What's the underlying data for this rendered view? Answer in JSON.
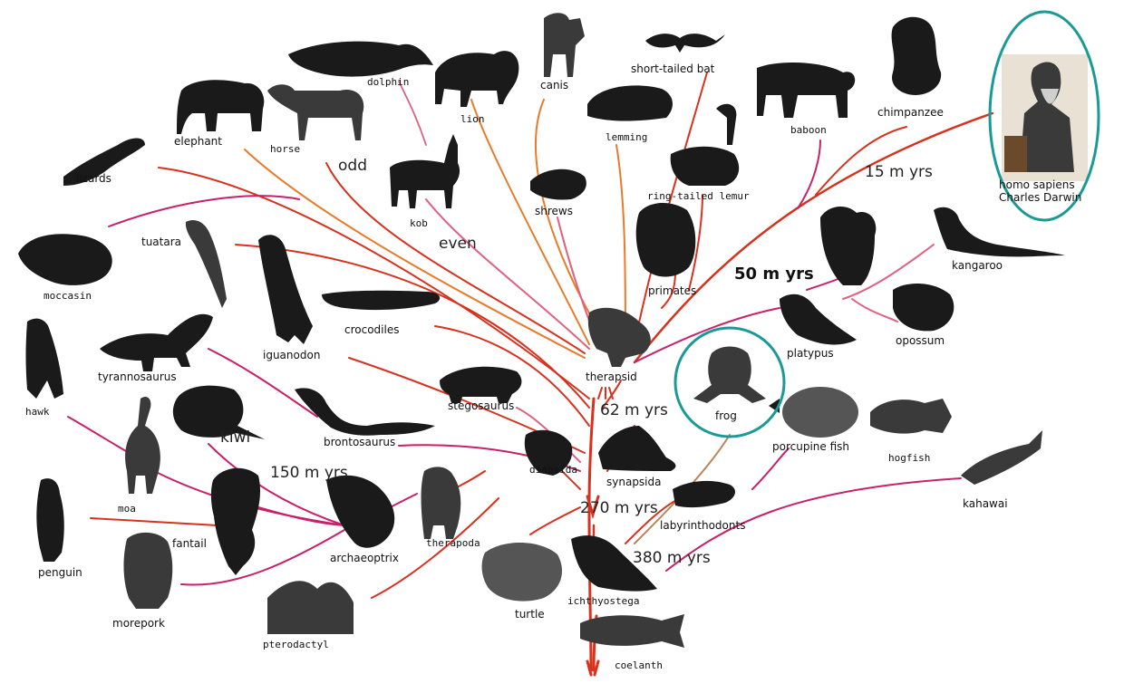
{
  "labels": {
    "dolphin": "dolphin",
    "lion": "lion",
    "canis": "canis",
    "short_tailed_bat": "short-tailed bat",
    "lemming": "lemming",
    "baboon": "baboon",
    "chimpanzee": "chimpanzee",
    "homo_sapiens": "homo sapiens",
    "charles_darwin": "Charles Darwin",
    "elephant": "elephant",
    "horse": "horse",
    "lizards": "lizards",
    "kob": "kob",
    "shrews": "shrews",
    "ring_tailed_lemur": "ring-tailed lemur",
    "primates": "primates",
    "kangaroo": "kangaroo",
    "moccasin": "moccasin",
    "tuatara": "tuatara",
    "crocodiles": "crocodiles",
    "therapsid": "therapsid",
    "platypus": "platypus",
    "opossum": "opossum",
    "hawk": "hawk",
    "tyrannosaurus": "tyrannosaurus",
    "iguanodon": "iguanodon",
    "stegosaurus": "stegosaurus",
    "frog": "frog",
    "kiwi": "kiwi",
    "brontosaurus": "brontosaurus",
    "porcupine_fish": "porcupine fish",
    "hogfish": "hogfish",
    "moa": "moa",
    "diapsida": "diapsida",
    "synapsida": "synapsida",
    "kahawai": "kahawai",
    "fantail": "fantail",
    "archaeoptrix": "archaeoptrix",
    "therapoda": "therapoda",
    "labyrinthodonts": "labyrinthodonts",
    "penguin": "penguin",
    "morepork": "morepork",
    "turtle": "turtle",
    "ichthyostega": "ichthyostega",
    "pterodactyl": "pterodactyl",
    "coelanth": "coelanth",
    "odd": "odd",
    "even": "even"
  },
  "eras": {
    "m15": "15  m yrs",
    "m50": "50 m yrs",
    "m62": "62  m yrs",
    "m150": "150 m yrs",
    "m270": "270 m yrs",
    "m380": "380 m yrs"
  },
  "colors": {
    "branch_red": "#d8321e",
    "branch_orange": "#e87a2a",
    "branch_magenta": "#c8206a",
    "branch_pink": "#e06080",
    "circle_teal": "#1a9a96"
  }
}
